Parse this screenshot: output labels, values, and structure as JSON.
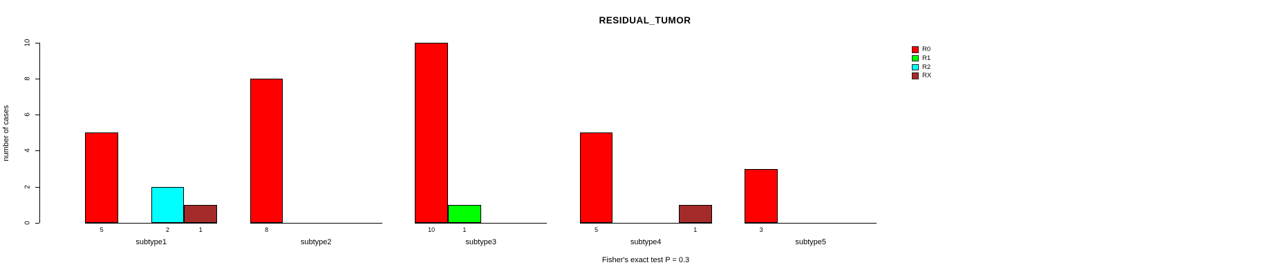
{
  "chart_data": {
    "type": "bar",
    "title": "RESIDUAL_TUMOR",
    "ylabel": "number of cases",
    "xlabel": "",
    "footnote": "Fisher's exact test P = 0.3",
    "categories": [
      "subtype1",
      "subtype2",
      "subtype3",
      "subtype4",
      "subtype5"
    ],
    "series": [
      {
        "name": "R0",
        "color": "#FF0000",
        "values": [
          5,
          8,
          10,
          5,
          3
        ]
      },
      {
        "name": "R1",
        "color": "#00FF00",
        "values": [
          0,
          0,
          1,
          0,
          0
        ]
      },
      {
        "name": "R2",
        "color": "#00FFFF",
        "values": [
          2,
          0,
          0,
          0,
          0
        ]
      },
      {
        "name": "RX",
        "color": "#A52A2A",
        "values": [
          1,
          0,
          0,
          1,
          0
        ]
      }
    ],
    "ylim": [
      0,
      10
    ],
    "yticks": [
      0,
      2,
      4,
      6,
      8,
      10
    ],
    "legend_position": "right",
    "grid": false,
    "value_labels": "shown under non-zero bars only",
    "background_color": "#FFFFFF",
    "text_color": "#000000"
  }
}
